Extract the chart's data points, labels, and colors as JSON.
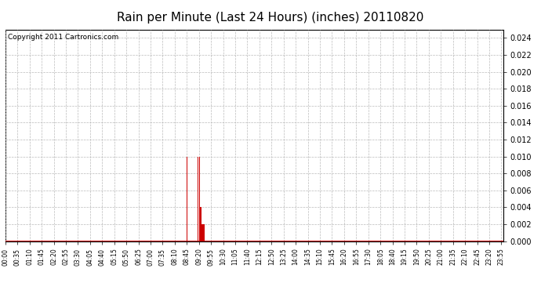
{
  "title": "Rain per Minute (Last 24 Hours) (inches) 20110820",
  "copyright_text": "Copyright 2011 Cartronics.com",
  "background_color": "#ffffff",
  "plot_background_color": "#ffffff",
  "bar_color": "#cc0000",
  "baseline_color": "#cc0000",
  "grid_color": "#bbbbbb",
  "ylim": [
    0.0,
    0.025
  ],
  "yticks": [
    0.0,
    0.002,
    0.004,
    0.006,
    0.008,
    0.01,
    0.012,
    0.014,
    0.016,
    0.018,
    0.02,
    0.022,
    0.024
  ],
  "total_minutes": 1440,
  "rain_events": [
    {
      "minute": 525,
      "value": 0.01
    },
    {
      "minute": 557,
      "value": 0.01
    },
    {
      "minute": 558,
      "value": 0.01
    },
    {
      "minute": 560,
      "value": 0.01
    },
    {
      "minute": 561,
      "value": 0.01
    },
    {
      "minute": 562,
      "value": 0.01
    },
    {
      "minute": 563,
      "value": 0.004
    },
    {
      "minute": 564,
      "value": 0.004
    },
    {
      "minute": 565,
      "value": 0.004
    },
    {
      "minute": 566,
      "value": 0.004
    },
    {
      "minute": 567,
      "value": 0.002
    },
    {
      "minute": 568,
      "value": 0.002
    },
    {
      "minute": 569,
      "value": 0.002
    },
    {
      "minute": 570,
      "value": 0.002
    },
    {
      "minute": 571,
      "value": 0.002
    },
    {
      "minute": 572,
      "value": 0.002
    },
    {
      "minute": 573,
      "value": 0.002
    },
    {
      "minute": 574,
      "value": 0.002
    },
    {
      "minute": 575,
      "value": 0.002
    },
    {
      "minute": 576,
      "value": 0.002
    },
    {
      "minute": 577,
      "value": 0.002
    }
  ],
  "x_tick_minutes": [
    0,
    35,
    70,
    105,
    140,
    175,
    210,
    245,
    280,
    315,
    350,
    385,
    420,
    455,
    490,
    525,
    560,
    595,
    630,
    665,
    700,
    735,
    770,
    805,
    840,
    875,
    910,
    945,
    980,
    1015,
    1050,
    1085,
    1120,
    1155,
    1190,
    1225,
    1260,
    1295,
    1330,
    1365,
    1400,
    1435
  ],
  "x_tick_labels": [
    "00:00",
    "00:35",
    "01:10",
    "01:45",
    "02:20",
    "02:55",
    "03:30",
    "04:05",
    "04:40",
    "05:15",
    "05:50",
    "06:25",
    "07:00",
    "07:35",
    "08:10",
    "08:45",
    "09:20",
    "09:55",
    "10:30",
    "11:05",
    "11:40",
    "12:15",
    "12:50",
    "13:25",
    "14:00",
    "14:35",
    "15:10",
    "15:45",
    "16:20",
    "16:55",
    "17:30",
    "18:05",
    "18:40",
    "19:15",
    "19:50",
    "20:25",
    "21:00",
    "21:35",
    "22:10",
    "22:45",
    "23:20",
    "23:55"
  ],
  "title_fontsize": 11,
  "copyright_fontsize": 6.5,
  "ytick_fontsize": 7,
  "xtick_fontsize": 5.5
}
